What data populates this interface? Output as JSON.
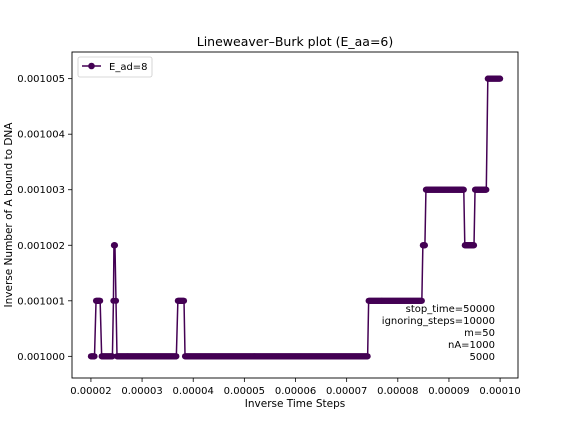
{
  "chart_data": {
    "type": "line",
    "title": "Lineweaver–Burk plot (E_aa=6)",
    "xlabel": "Inverse Time Steps",
    "ylabel": "Inverse Number of A bound to DNA",
    "xlim": [
      1.63e-05,
      0.0001035
    ],
    "ylim": [
      0.00099961,
      0.00100548
    ],
    "x_ticks": [
      2e-05,
      3e-05,
      4e-05,
      5e-05,
      6e-05,
      7e-05,
      8e-05,
      9e-05,
      0.0001
    ],
    "x_tick_labels": [
      "0.00002",
      "0.00003",
      "0.00004",
      "0.00005",
      "0.00006",
      "0.00007",
      "0.00008",
      "0.00009",
      "0.00010"
    ],
    "y_ticks": [
      0.001,
      0.001001,
      0.001002,
      0.001003,
      0.001004,
      0.001005
    ],
    "y_tick_labels": [
      "0.001000",
      "0.001001",
      "0.001002",
      "0.001003",
      "0.001004",
      "0.001005"
    ],
    "grid": false,
    "legend": {
      "position": "top-left"
    },
    "series": [
      {
        "name": "E_ad=8",
        "color": "#440154",
        "segments": [
          {
            "x_start": 2e-05,
            "x_end": 2.07e-05,
            "y": 0.001
          },
          {
            "x_start": 2.1e-05,
            "x_end": 2.18e-05,
            "y": 0.001001
          },
          {
            "x_start": 2.21e-05,
            "x_end": 2.42e-05,
            "y": 0.001
          },
          {
            "x_start": 2.44e-05,
            "x_end": 2.44e-05,
            "y": 0.001001
          },
          {
            "x_start": 2.45e-05,
            "x_end": 2.47e-05,
            "y": 0.001002
          },
          {
            "x_start": 2.49e-05,
            "x_end": 2.49e-05,
            "y": 0.001001
          },
          {
            "x_start": 2.51e-05,
            "x_end": 3.67e-05,
            "y": 0.001
          },
          {
            "x_start": 3.7e-05,
            "x_end": 3.82e-05,
            "y": 0.001001
          },
          {
            "x_start": 3.84e-05,
            "x_end": 7.41e-05,
            "y": 0.001
          },
          {
            "x_start": 7.43e-05,
            "x_end": 8.47e-05,
            "y": 0.001001
          },
          {
            "x_start": 8.49e-05,
            "x_end": 8.53e-05,
            "y": 0.001002
          },
          {
            "x_start": 8.55e-05,
            "x_end": 9.29e-05,
            "y": 0.001003
          },
          {
            "x_start": 9.31e-05,
            "x_end": 9.49e-05,
            "y": 0.001002
          },
          {
            "x_start": 9.51e-05,
            "x_end": 9.73e-05,
            "y": 0.001003
          },
          {
            "x_start": 9.76e-05,
            "x_end": 0.0001,
            "y": 0.001005
          }
        ]
      }
    ],
    "annotations": [
      "stop_time=50000",
      "ignoring_steps=10000",
      "m=50",
      "nA=1000",
      "5000"
    ]
  }
}
